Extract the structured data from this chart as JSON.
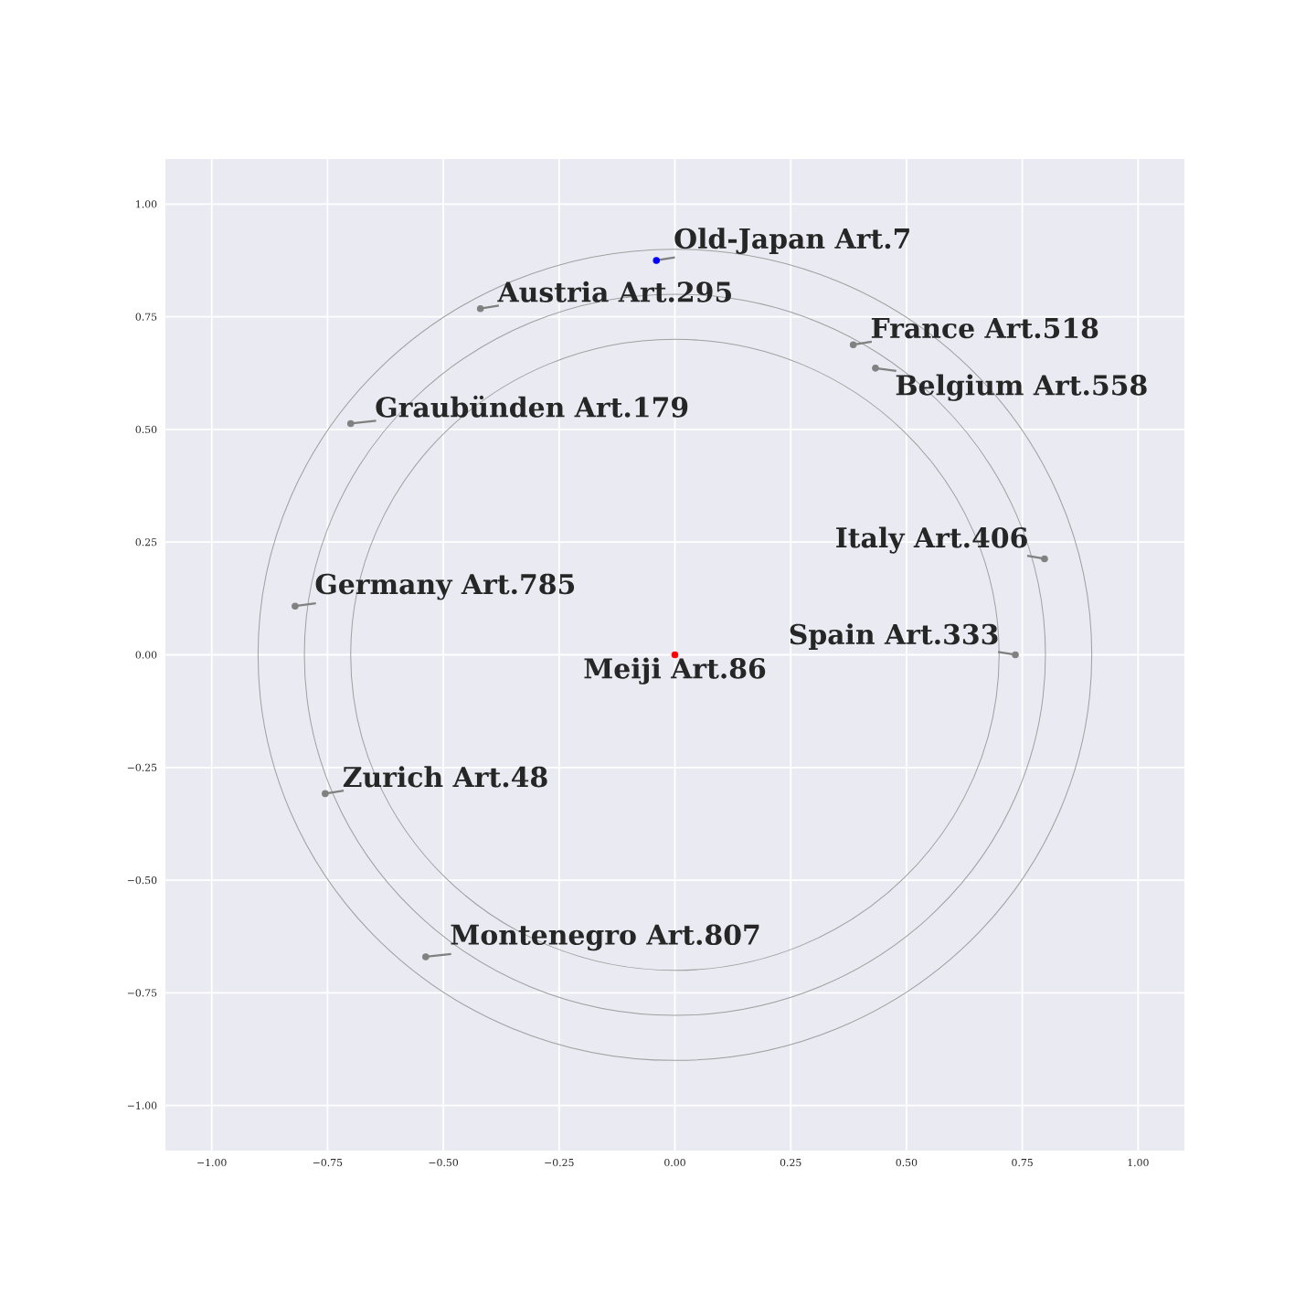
{
  "chart_data": {
    "type": "scatter",
    "series": [
      {
        "marker": "circle",
        "x": [
          0,
          -0.04,
          -0.42,
          0.385,
          0.433,
          -0.7,
          0.798,
          -0.82,
          0.735,
          -0.755,
          -0.538
        ],
        "values": [
          0,
          0.875,
          0.768,
          0.688,
          0.636,
          0.513,
          0.213,
          0.108,
          0,
          -0.308,
          -0.67
        ],
        "colors": [
          "#ff0000",
          "#0000ff",
          "#808080",
          "#808080",
          "#808080",
          "#808080",
          "#808080",
          "#808080",
          "#808080",
          "#808080",
          "#808080"
        ]
      }
    ],
    "annotations": [
      {
        "text": "Meiji Art.86",
        "x": 0,
        "y": 0
      },
      {
        "text": "Old-Japan Art.7",
        "x": -0.04,
        "y": 0.875
      },
      {
        "text": "Austria Art.295",
        "x": -0.42,
        "y": 0.768
      },
      {
        "text": "France Art.518",
        "x": 0.385,
        "y": 0.688
      },
      {
        "text": "Belgium Art.558",
        "x": 0.433,
        "y": 0.636
      },
      {
        "text": "Graubünden Art.179",
        "x": -0.7,
        "y": 0.513
      },
      {
        "text": "Italy Art.406",
        "x": 0.798,
        "y": 0.213
      },
      {
        "text": "Germany Art.785",
        "x": -0.82,
        "y": 0.108
      },
      {
        "text": "Spain Art.333",
        "x": 0.735,
        "y": 0
      },
      {
        "text": "Zurich Art.48",
        "x": -0.755,
        "y": -0.308
      },
      {
        "text": "Montenegro Art.807",
        "x": -0.538,
        "y": -0.67
      }
    ],
    "xlim": [
      -1.1,
      1.1
    ],
    "ylim": [
      -1.1,
      1.1
    ],
    "xticks": [
      {
        "value": -1,
        "label": "−1.00"
      },
      {
        "value": -0.75,
        "label": "−0.75"
      },
      {
        "value": -0.5,
        "label": "−0.50"
      },
      {
        "value": -0.25,
        "label": "−0.25"
      },
      {
        "value": 0,
        "label": "0.00"
      },
      {
        "value": 0.25,
        "label": "0.25"
      },
      {
        "value": 0.5,
        "label": "0.50"
      },
      {
        "value": 0.75,
        "label": "0.75"
      },
      {
        "value": 1,
        "label": "1.00"
      }
    ],
    "yticks": [
      {
        "value": -1,
        "label": "−1.00"
      },
      {
        "value": -0.75,
        "label": "−0.75"
      },
      {
        "value": -0.5,
        "label": "−0.50"
      },
      {
        "value": -0.25,
        "label": "−0.25"
      },
      {
        "value": 0,
        "label": "0.00"
      },
      {
        "value": 0.25,
        "label": "0.25"
      },
      {
        "value": 0.5,
        "label": "0.50"
      },
      {
        "value": 0.75,
        "label": "0.75"
      },
      {
        "value": 1,
        "label": "1.00"
      }
    ],
    "grid": true
  }
}
